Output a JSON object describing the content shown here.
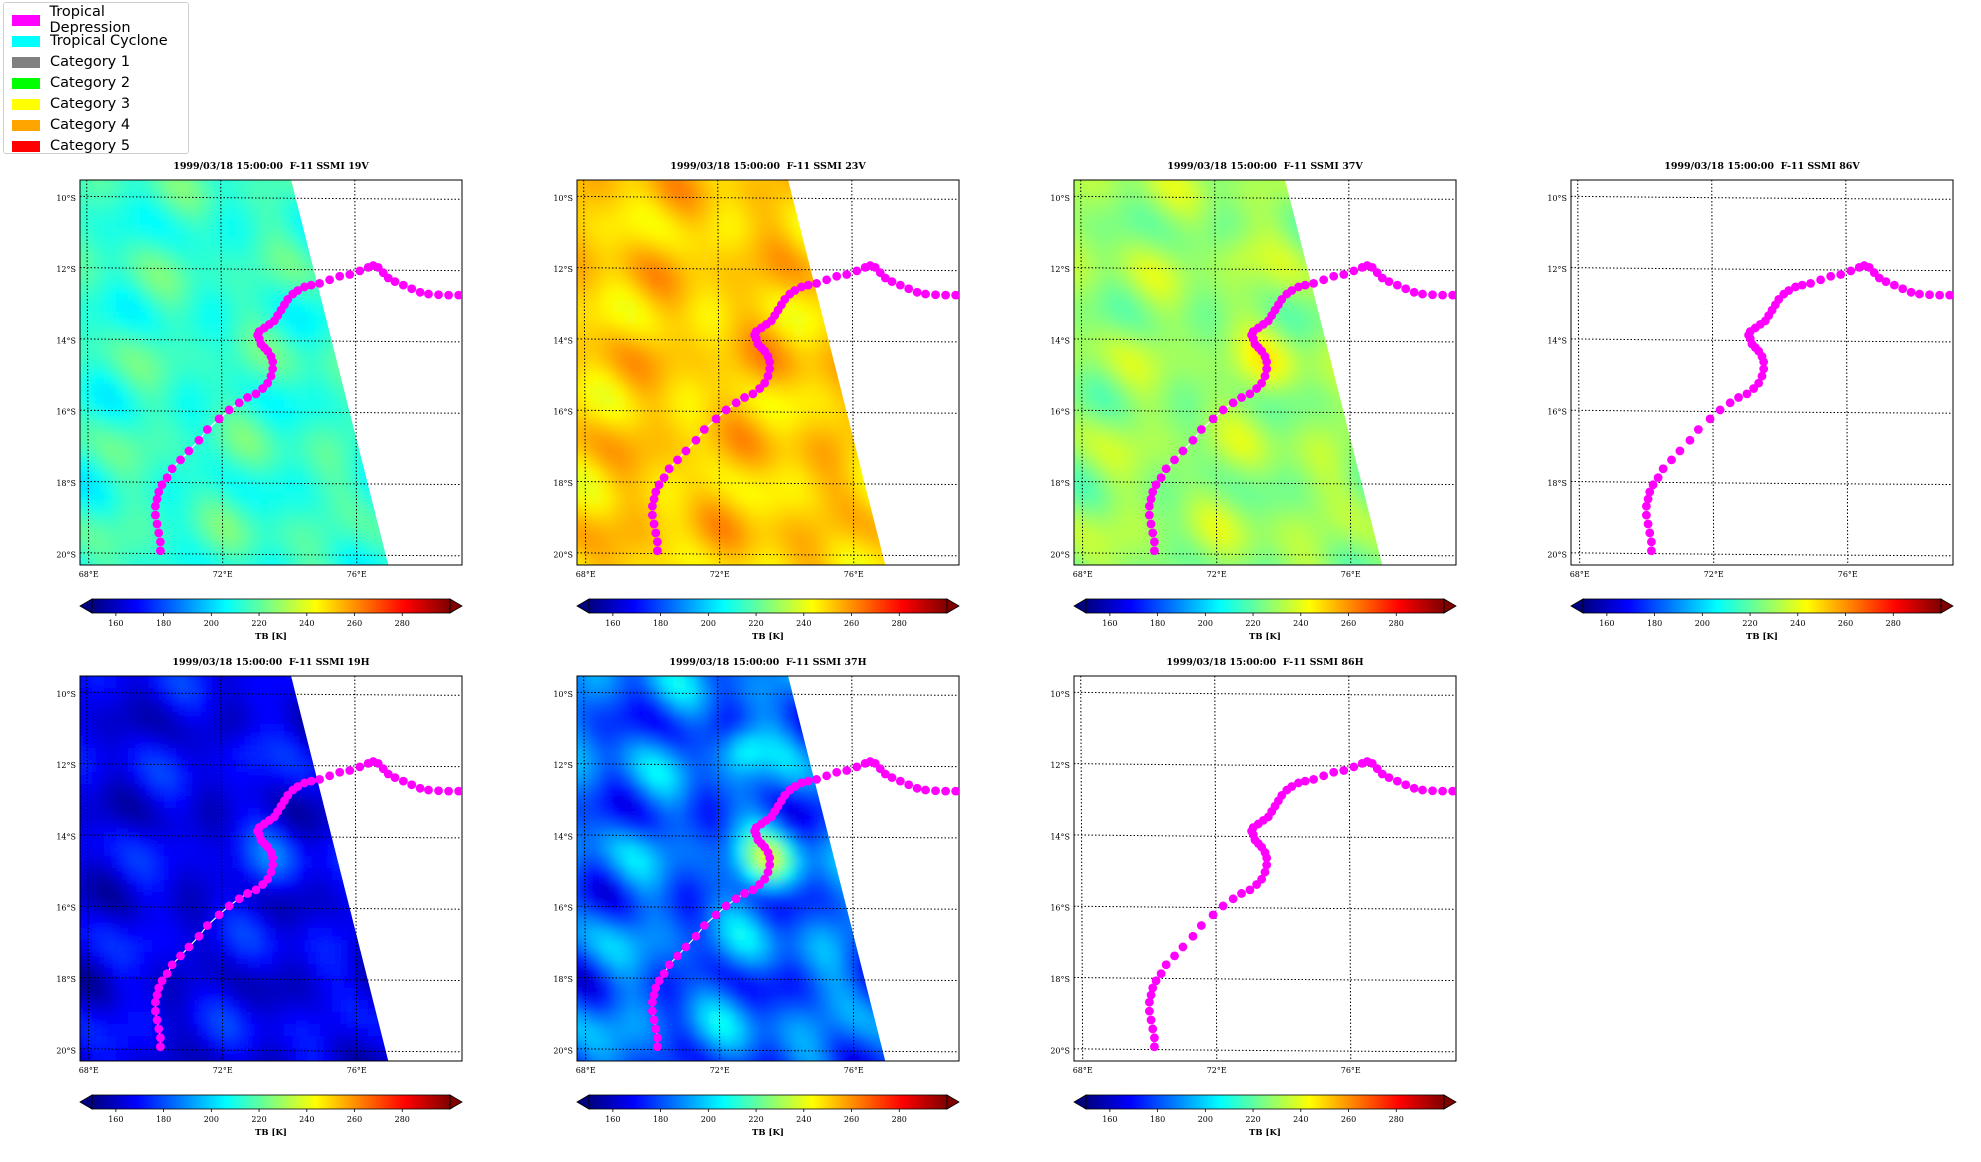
{
  "legend": {
    "items": [
      {
        "label": "Tropical Depression",
        "color": "#ff00ff"
      },
      {
        "label": "Tropical Cyclone",
        "color": "#00ffff"
      },
      {
        "label": "Category 1",
        "color": "#808080"
      },
      {
        "label": "Category 2",
        "color": "#00ff00"
      },
      {
        "label": "Category 3",
        "color": "#ffff00"
      },
      {
        "label": "Category 4",
        "color": "#ffa500"
      },
      {
        "label": "Category 5",
        "color": "#ff0000"
      }
    ]
  },
  "panels": [
    {
      "title": "1999/03/18 15:00:00  F-11 SSMI 19V",
      "channel": "19V",
      "swath": true,
      "base_tb": 214,
      "variation": 6,
      "warm_anomaly": 0
    },
    {
      "title": "1999/03/18 15:00:00  F-11 SSMI 23V",
      "channel": "23V",
      "swath": true,
      "base_tb": 251,
      "variation": 6,
      "warm_anomaly": 3
    },
    {
      "title": "1999/03/18 15:00:00  F-11 SSMI 37V",
      "channel": "37V",
      "swath": true,
      "base_tb": 229,
      "variation": 6,
      "warm_anomaly": 10
    },
    {
      "title": "1999/03/18 15:00:00  F-11 SSMI 86V",
      "channel": "86V",
      "swath": false
    },
    {
      "title": "1999/03/18 15:00:00  F-11 SSMI 19H",
      "channel": "19H",
      "swath": true,
      "base_tb": 166,
      "variation": 7,
      "warm_anomaly": 14
    },
    {
      "title": "1999/03/18 15:00:00  F-11 SSMI 37H",
      "channel": "37H",
      "swath": true,
      "base_tb": 184,
      "variation": 12,
      "warm_anomaly": 40
    },
    {
      "title": "1999/03/18 15:00:00  F-11 SSMI 86H",
      "channel": "86H",
      "swath": false
    }
  ],
  "map": {
    "lon_range": [
      67.8,
      79.2
    ],
    "lat_range": [
      -20.3,
      -9.5
    ],
    "lon_ticks": [
      68,
      72,
      76
    ],
    "lon_tick_labels": [
      "68°E",
      "72°E",
      "76°E"
    ],
    "lat_ticks": [
      -10,
      -12,
      -14,
      -16,
      -18,
      -20
    ],
    "lat_tick_labels": [
      "10°S",
      "12°S",
      "14°S",
      "16°S",
      "18°S",
      "20°S"
    ],
    "swath_edge": {
      "top_lon": 74.1,
      "bottom_lon": 77.0
    },
    "track_color": "#ff00ff",
    "track_category": "Tropical Depression"
  },
  "colorbar": {
    "label": "TB [K]",
    "min": 150,
    "max": 300,
    "ticks": [
      160,
      180,
      200,
      220,
      240,
      260,
      280
    ],
    "tick_labels": [
      "160",
      "180",
      "200",
      "220",
      "240",
      "260",
      "280"
    ],
    "colormap": "jet",
    "extend": "both"
  },
  "chart_data": {
    "type": "scatter",
    "title": "1999/03/18 15:00:00  F-11 SSMI",
    "xlabel": "",
    "ylabel": "",
    "xlim": [
      67.8,
      79.2
    ],
    "ylim": [
      -20.3,
      -9.5
    ],
    "series": [
      {
        "name": "Tropical Depression",
        "x": [
          70.2,
          70.2,
          70.15,
          70.1,
          70.05,
          70.05,
          70.1,
          70.15,
          70.25,
          70.4,
          70.55,
          70.8,
          71.05,
          71.35,
          71.6,
          71.95,
          72.25,
          72.55,
          72.8,
          73.05,
          73.25,
          73.4,
          73.5,
          73.55,
          73.55,
          73.5,
          73.4,
          73.3,
          73.2,
          73.15,
          73.1,
          73.15,
          73.3,
          73.45,
          73.6,
          73.7,
          73.8,
          73.9,
          74.0,
          74.15,
          74.3,
          74.5,
          74.7,
          74.95,
          75.25,
          75.55,
          75.85,
          76.15,
          76.4,
          76.55,
          76.7,
          76.85,
          77.0,
          77.2,
          77.45,
          77.7,
          77.95,
          78.2,
          78.5,
          78.8,
          79.1
        ],
        "y": [
          -19.9,
          -19.65,
          -19.4,
          -19.15,
          -18.9,
          -18.65,
          -18.45,
          -18.25,
          -18.05,
          -17.85,
          -17.6,
          -17.35,
          -17.1,
          -16.8,
          -16.5,
          -16.2,
          -15.95,
          -15.75,
          -15.6,
          -15.5,
          -15.35,
          -15.2,
          -15.0,
          -14.8,
          -14.6,
          -14.45,
          -14.3,
          -14.2,
          -14.1,
          -13.95,
          -13.85,
          -13.75,
          -13.65,
          -13.55,
          -13.45,
          -13.3,
          -13.15,
          -13.0,
          -12.85,
          -12.7,
          -12.6,
          -12.5,
          -12.45,
          -12.4,
          -12.3,
          -12.2,
          -12.15,
          -12.05,
          -11.95,
          -11.9,
          -11.95,
          -12.1,
          -12.25,
          -12.35,
          -12.45,
          -12.55,
          -12.65,
          -12.7,
          -12.72,
          -12.73,
          -12.73
        ]
      }
    ]
  }
}
